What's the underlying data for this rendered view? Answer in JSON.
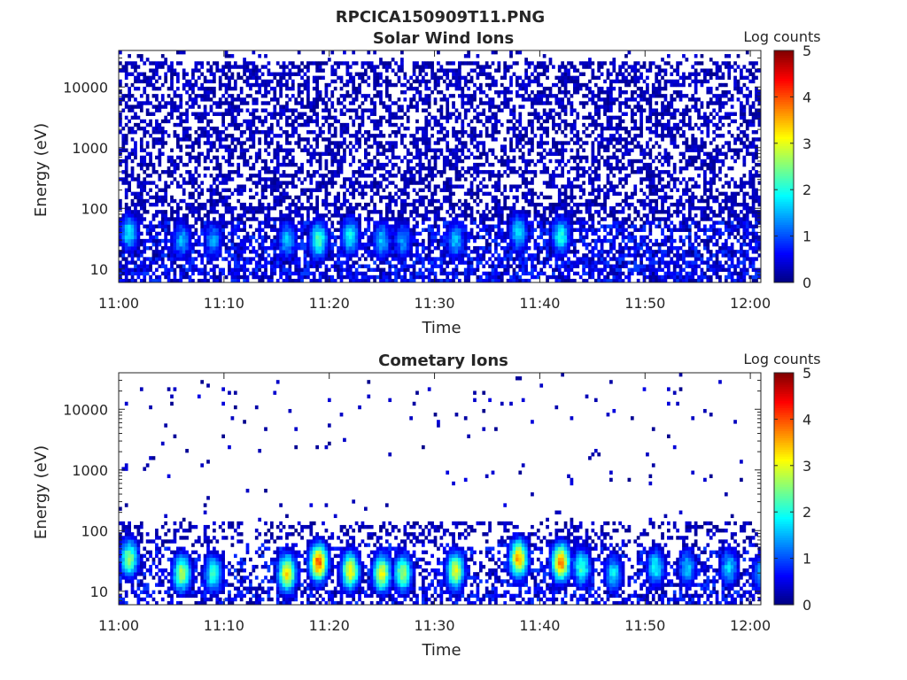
{
  "figure": {
    "title": "RPCICA150909T11.PNG"
  },
  "chart_data": [
    {
      "type": "heatmap",
      "title": "Solar Wind Ions",
      "xlabel": "Time",
      "ylabel": "Energy (eV)",
      "x_range": [
        "11:00",
        "12:01"
      ],
      "y_scale": "log",
      "ylim": [
        6,
        40000
      ],
      "x_ticks": [
        "11:00",
        "11:10",
        "11:20",
        "11:30",
        "11:40",
        "11:50",
        "12:00"
      ],
      "y_ticks": [
        {
          "value": 10,
          "label": "10"
        },
        {
          "value": 100,
          "label": "100"
        },
        {
          "value": 1000,
          "label": "1000"
        },
        {
          "value": 10000,
          "label": "10000"
        }
      ],
      "colorbar": {
        "label": "Log counts",
        "range": [
          0,
          5
        ],
        "ticks": [
          "0",
          "1",
          "2",
          "3",
          "4",
          "5"
        ],
        "colormap": "jet"
      },
      "grid": false,
      "bursts": [
        {
          "time": "11:01",
          "energy": 40,
          "log_counts": 1.8
        },
        {
          "time": "11:06",
          "energy": 30,
          "log_counts": 1.5
        },
        {
          "time": "11:09",
          "energy": 30,
          "log_counts": 1.4
        },
        {
          "time": "11:16",
          "energy": 30,
          "log_counts": 1.6
        },
        {
          "time": "11:19",
          "energy": 30,
          "log_counts": 2.3
        },
        {
          "time": "11:22",
          "energy": 35,
          "log_counts": 1.9
        },
        {
          "time": "11:25",
          "energy": 30,
          "log_counts": 1.6
        },
        {
          "time": "11:27",
          "energy": 30,
          "log_counts": 1.4
        },
        {
          "time": "11:32",
          "energy": 30,
          "log_counts": 1.6
        },
        {
          "time": "11:38",
          "energy": 40,
          "log_counts": 1.8
        },
        {
          "time": "11:42",
          "energy": 35,
          "log_counts": 2.0
        }
      ]
    },
    {
      "type": "heatmap",
      "title": "Cometary Ions",
      "xlabel": "Time",
      "ylabel": "Energy (eV)",
      "x_range": [
        "11:00",
        "12:01"
      ],
      "y_scale": "log",
      "ylim": [
        6,
        40000
      ],
      "x_ticks": [
        "11:00",
        "11:10",
        "11:20",
        "11:30",
        "11:40",
        "11:50",
        "12:00"
      ],
      "y_ticks": [
        {
          "value": 10,
          "label": "10"
        },
        {
          "value": 100,
          "label": "100"
        },
        {
          "value": 1000,
          "label": "1000"
        },
        {
          "value": 10000,
          "label": "10000"
        }
      ],
      "colorbar": {
        "label": "Log counts",
        "range": [
          0,
          5
        ],
        "ticks": [
          "0",
          "1",
          "2",
          "3",
          "4",
          "5"
        ],
        "colormap": "jet"
      },
      "grid": false,
      "bursts": [
        {
          "time": "11:01",
          "energy": 35,
          "log_counts": 2.6
        },
        {
          "time": "11:06",
          "energy": 20,
          "log_counts": 2.8
        },
        {
          "time": "11:09",
          "energy": 20,
          "log_counts": 2.2
        },
        {
          "time": "11:16",
          "energy": 20,
          "log_counts": 3.3
        },
        {
          "time": "11:19",
          "energy": 30,
          "log_counts": 4.0
        },
        {
          "time": "11:22",
          "energy": 22,
          "log_counts": 3.2
        },
        {
          "time": "11:25",
          "energy": 20,
          "log_counts": 3.1
        },
        {
          "time": "11:27",
          "energy": 20,
          "log_counts": 2.7
        },
        {
          "time": "11:32",
          "energy": 22,
          "log_counts": 3.0
        },
        {
          "time": "11:38",
          "energy": 35,
          "log_counts": 3.6
        },
        {
          "time": "11:42",
          "energy": 30,
          "log_counts": 3.8
        },
        {
          "time": "11:44",
          "energy": 25,
          "log_counts": 2.2
        },
        {
          "time": "11:47",
          "energy": 20,
          "log_counts": 1.8
        },
        {
          "time": "11:51",
          "energy": 25,
          "log_counts": 1.9
        },
        {
          "time": "11:54",
          "energy": 25,
          "log_counts": 1.6
        },
        {
          "time": "11:58",
          "energy": 25,
          "log_counts": 1.7
        },
        {
          "time": "12:01",
          "energy": 20,
          "log_counts": 1.5
        }
      ]
    }
  ]
}
